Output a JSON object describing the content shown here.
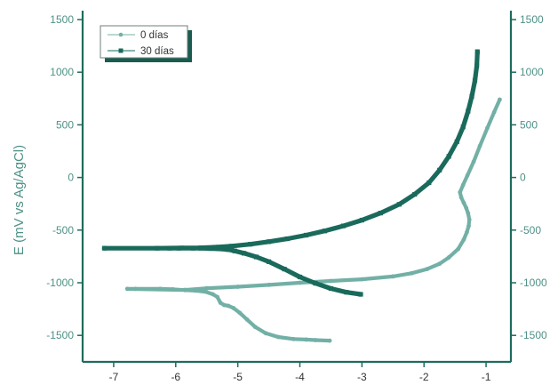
{
  "chart_data": {
    "type": "scatter",
    "ylabel": "E (mV vs Ag/AgCl)",
    "xlim": [
      -7.5,
      -0.6
    ],
    "ylim": [
      -1750,
      1500
    ],
    "x_ticks": [
      -7,
      -6,
      -5,
      -4,
      -3,
      -2,
      -1
    ],
    "y_ticks": [
      1500,
      1000,
      500,
      0,
      -500,
      -1000,
      -1500
    ],
    "grid": false,
    "legend_position": "top-left",
    "colors": {
      "axis": "#1e6b5c",
      "text": "#4e9186",
      "box": "#1a5c50"
    },
    "series": [
      {
        "name": "0 días",
        "color": "#72b0a6",
        "marker": "circle",
        "points": [
          [
            -3.52,
            -1550
          ],
          [
            -3.75,
            -1545
          ],
          [
            -3.9,
            -1540
          ],
          [
            -4.1,
            -1535
          ],
          [
            -4.35,
            -1515
          ],
          [
            -4.55,
            -1480
          ],
          [
            -4.72,
            -1420
          ],
          [
            -4.85,
            -1350
          ],
          [
            -4.97,
            -1285
          ],
          [
            -5.07,
            -1240
          ],
          [
            -5.15,
            -1220
          ],
          [
            -5.22,
            -1212
          ],
          [
            -5.28,
            -1190
          ],
          [
            -5.33,
            -1135
          ],
          [
            -5.4,
            -1110
          ],
          [
            -5.52,
            -1085
          ],
          [
            -5.68,
            -1075
          ],
          [
            -5.85,
            -1070
          ],
          [
            -6.05,
            -1062
          ],
          [
            -6.25,
            -1058
          ],
          [
            -6.65,
            -1058
          ],
          [
            -6.78,
            -1058
          ],
          [
            -5.85,
            -1068
          ],
          [
            -5.5,
            -1052
          ],
          [
            -5.0,
            -1038
          ],
          [
            -4.5,
            -1020
          ],
          [
            -4.0,
            -1000
          ],
          [
            -3.5,
            -983
          ],
          [
            -3.0,
            -967
          ],
          [
            -2.5,
            -940
          ],
          [
            -2.2,
            -910
          ],
          [
            -1.95,
            -870
          ],
          [
            -1.75,
            -820
          ],
          [
            -1.6,
            -760
          ],
          [
            -1.45,
            -680
          ],
          [
            -1.36,
            -590
          ],
          [
            -1.31,
            -520
          ],
          [
            -1.28,
            -460
          ],
          [
            -1.27,
            -400
          ],
          [
            -1.29,
            -340
          ],
          [
            -1.32,
            -290
          ],
          [
            -1.36,
            -240
          ],
          [
            -1.4,
            -190
          ],
          [
            -1.42,
            -140
          ],
          [
            -1.37,
            -70
          ],
          [
            -1.3,
            20
          ],
          [
            -1.2,
            150
          ],
          [
            -1.1,
            300
          ],
          [
            -0.98,
            470
          ],
          [
            -0.87,
            620
          ],
          [
            -0.78,
            740
          ]
        ]
      },
      {
        "name": "30 días",
        "color": "#1a6a5c",
        "marker": "square",
        "points": [
          [
            -3.02,
            -1110
          ],
          [
            -3.25,
            -1090
          ],
          [
            -3.5,
            -1055
          ],
          [
            -3.75,
            -1005
          ],
          [
            -4.0,
            -945
          ],
          [
            -4.25,
            -870
          ],
          [
            -4.5,
            -800
          ],
          [
            -4.7,
            -755
          ],
          [
            -4.9,
            -720
          ],
          [
            -5.05,
            -698
          ],
          [
            -5.15,
            -685
          ],
          [
            -5.3,
            -678
          ],
          [
            -5.45,
            -675
          ],
          [
            -5.6,
            -672
          ],
          [
            -5.72,
            -672
          ],
          [
            -5.95,
            -672
          ],
          [
            -6.1,
            -672
          ],
          [
            -7.15,
            -672
          ],
          [
            -6.3,
            -672
          ],
          [
            -5.9,
            -670
          ],
          [
            -5.6,
            -668
          ],
          [
            -5.35,
            -662
          ],
          [
            -5.1,
            -652
          ],
          [
            -4.8,
            -634
          ],
          [
            -4.5,
            -610
          ],
          [
            -4.2,
            -582
          ],
          [
            -3.9,
            -548
          ],
          [
            -3.6,
            -508
          ],
          [
            -3.3,
            -460
          ],
          [
            -3.0,
            -405
          ],
          [
            -2.7,
            -338
          ],
          [
            -2.4,
            -255
          ],
          [
            -2.15,
            -160
          ],
          [
            -1.92,
            -50
          ],
          [
            -1.75,
            70
          ],
          [
            -1.6,
            200
          ],
          [
            -1.47,
            340
          ],
          [
            -1.37,
            480
          ],
          [
            -1.29,
            630
          ],
          [
            -1.23,
            770
          ],
          [
            -1.18,
            920
          ],
          [
            -1.15,
            1060
          ],
          [
            -1.14,
            1195
          ]
        ]
      }
    ]
  }
}
